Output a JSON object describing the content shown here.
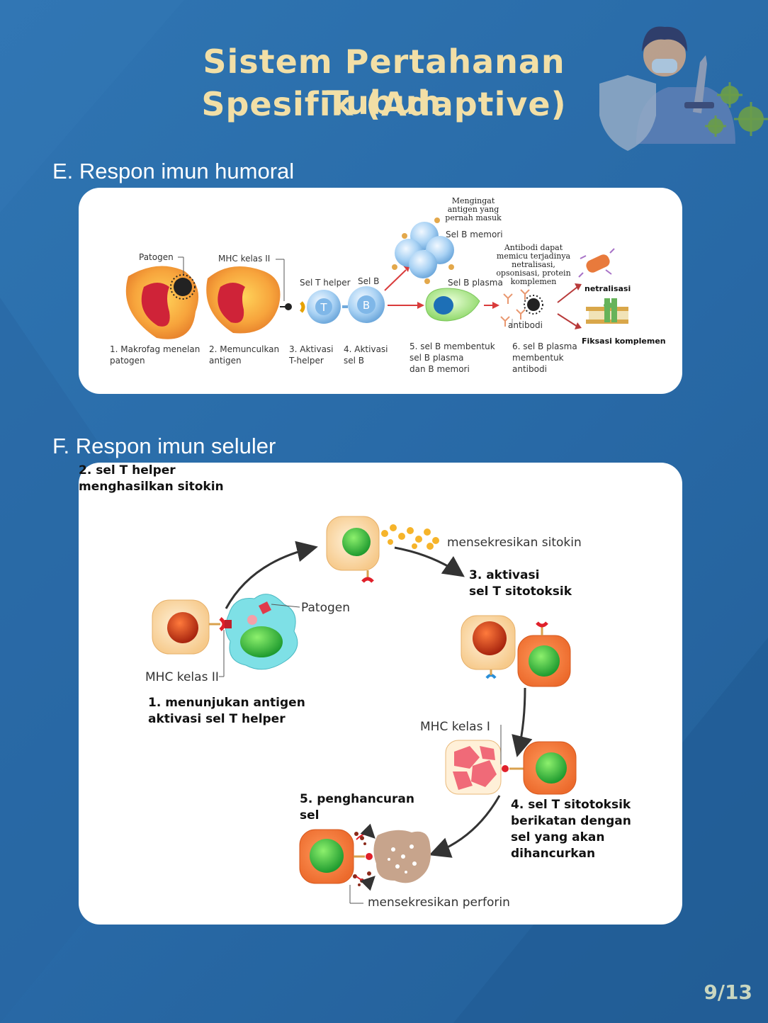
{
  "title": {
    "line1": "Sistem Pertahanan Tubuh",
    "line2": "Spesifik (Adaptive)"
  },
  "section_e": "E. Respon imun humoral",
  "section_f": "F. Respon imun seluler",
  "humoral": {
    "patogen": "Patogen",
    "mhc_kelas_ii": "MHC kelas II",
    "sel_t_helper": "Sel T helper",
    "sel_b": "Sel B",
    "mengingat": "Mengingat\nantigen yang\npernah masuk",
    "sel_b_memori": "Sel B memori",
    "sel_b_plasma": "Sel B plasma",
    "antibodi_dapat": "Antibodi dapat\nmemicu terjadinya\nnetralisasi,\nopsonisasi, protein\nkomplemen",
    "netralisasi": "netralisasi",
    "fiksasi": "Fiksasi komplemen",
    "antibodi": "antibodi",
    "cell_t": "T",
    "cell_b": "B",
    "step1": "1. Makrofag menelan\npatogen",
    "step2": "2. Memunculkan\nantigen",
    "step3": "3. Aktivasi\nT-helper",
    "step4": "4. Aktivasi\nsel B",
    "step5": "5. sel B membentuk\nsel B plasma\ndan B memori",
    "step6": "6. sel B plasma\nmembentuk\nantibodi"
  },
  "seluler": {
    "step2": "2. sel T helper\nmenghasilkan sitokin",
    "sitokin": "mensekresikan sitokin",
    "step3": "3. aktivasi\nsel T sitotoksik",
    "patogen": "Patogen",
    "mhc_kelas_ii": "MHC kelas II",
    "step1": "1. menunjukan antigen\naktivasi sel T helper",
    "mhc_kelas_i": "MHC kelas I",
    "step4": "4. sel T sitotoksik\nberikatan dengan\nsel yang akan\ndihancurkan",
    "step5": "5. penghancuran\nsel",
    "perforin": "mensekresikan perforin"
  },
  "page_number": "9/13"
}
